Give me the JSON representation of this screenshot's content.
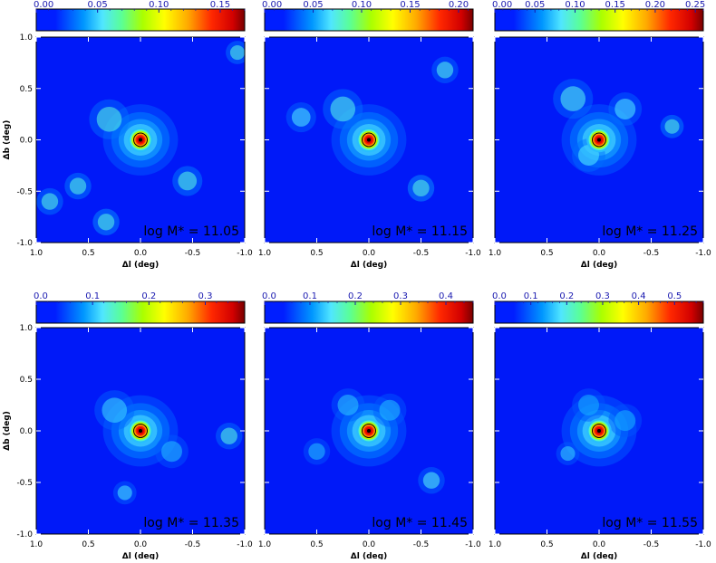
{
  "chart_data": [
    {
      "type": "heatmap",
      "colorbar": {
        "range": [
          0,
          0.17
        ],
        "ticks": [
          "0.00",
          "0.05",
          "0.10",
          "0.15"
        ],
        "values": [
          0,
          0.05,
          0.1,
          0.15
        ]
      },
      "xlabel": "Δl (deg)",
      "ylabel": "Δb (deg)",
      "xlim": [
        1.0,
        -1.0
      ],
      "ylim": [
        -1.0,
        1.0
      ],
      "xticks": [
        "1.0",
        "0.5",
        "0.0",
        "-0.5",
        "-1.0"
      ],
      "yticks": [
        "-1.0",
        "-0.5",
        "0.0",
        "0.5",
        "1.0"
      ],
      "annotation": "log M* = 11.05",
      "peak": {
        "l": 0.0,
        "b": 0.0,
        "value": 0.17
      },
      "blobs": [
        {
          "l": 0.33,
          "b": -0.8,
          "amp": 0.045,
          "sigma": 0.08
        },
        {
          "l": 0.6,
          "b": -0.45,
          "amp": 0.035,
          "sigma": 0.08
        },
        {
          "l": 0.87,
          "b": -0.6,
          "amp": 0.03,
          "sigma": 0.08
        },
        {
          "l": -0.45,
          "b": -0.4,
          "amp": 0.035,
          "sigma": 0.09
        },
        {
          "l": -0.93,
          "b": 0.85,
          "amp": 0.03,
          "sigma": 0.07
        },
        {
          "l": 0.3,
          "b": 0.2,
          "amp": 0.025,
          "sigma": 0.12
        }
      ]
    },
    {
      "type": "heatmap",
      "colorbar": {
        "range": [
          0,
          0.215
        ],
        "ticks": [
          "0.00",
          "0.05",
          "0.10",
          "0.15",
          "0.20"
        ],
        "values": [
          0,
          0.05,
          0.1,
          0.15,
          0.2
        ]
      },
      "xlabel": "Δl (deg)",
      "ylabel": "",
      "xlim": [
        1.0,
        -1.0
      ],
      "ylim": [
        -1.0,
        1.0
      ],
      "xticks": [
        "1.0",
        "0.5",
        "0.0",
        "-0.5",
        "-1.0"
      ],
      "yticks": [],
      "annotation": "log M* = 11.15",
      "peak": {
        "l": 0.0,
        "b": 0.0,
        "value": 0.215
      },
      "blobs": [
        {
          "l": -0.5,
          "b": -0.47,
          "amp": 0.06,
          "sigma": 0.08
        },
        {
          "l": -0.73,
          "b": 0.68,
          "amp": 0.03,
          "sigma": 0.08
        },
        {
          "l": 0.65,
          "b": 0.22,
          "amp": 0.025,
          "sigma": 0.09
        },
        {
          "l": 0.25,
          "b": 0.3,
          "amp": 0.03,
          "sigma": 0.12
        }
      ]
    },
    {
      "type": "heatmap",
      "colorbar": {
        "range": [
          0,
          0.26
        ],
        "ticks": [
          "0.00",
          "0.05",
          "0.10",
          "0.15",
          "0.20",
          "0.25"
        ],
        "values": [
          0,
          0.05,
          0.1,
          0.15,
          0.2,
          0.25
        ]
      },
      "xlabel": "Δl (deg)",
      "ylabel": "",
      "xlim": [
        1.0,
        -1.0
      ],
      "ylim": [
        -1.0,
        1.0
      ],
      "xticks": [
        "1.0",
        "0.5",
        "0.0",
        "-0.5",
        "-1.0"
      ],
      "yticks": [],
      "annotation": "log M* = 11.25",
      "peak": {
        "l": 0.0,
        "b": 0.0,
        "value": 0.26
      },
      "blobs": [
        {
          "l": -0.7,
          "b": 0.13,
          "amp": 0.06,
          "sigma": 0.07
        },
        {
          "l": 0.25,
          "b": 0.4,
          "amp": 0.035,
          "sigma": 0.12
        },
        {
          "l": -0.25,
          "b": 0.3,
          "amp": 0.03,
          "sigma": 0.1
        },
        {
          "l": 0.1,
          "b": -0.15,
          "amp": 0.03,
          "sigma": 0.1
        }
      ]
    },
    {
      "type": "heatmap",
      "colorbar": {
        "range": [
          0,
          0.37
        ],
        "ticks": [
          "0.0",
          "0.1",
          "0.2",
          "0.3"
        ],
        "values": [
          0,
          0.1,
          0.2,
          0.3
        ]
      },
      "xlabel": "Δl (deg)",
      "ylabel": "Δb (deg)",
      "xlim": [
        1.0,
        -1.0
      ],
      "ylim": [
        -1.0,
        1.0
      ],
      "xticks": [
        "1.0",
        "0.5",
        "0.0",
        "-0.5",
        "-1.0"
      ],
      "yticks": [
        "-1.0",
        "-0.5",
        "0.0",
        "0.5",
        "1.0"
      ],
      "annotation": "log M* = 11.35",
      "peak": {
        "l": 0.0,
        "b": 0.0,
        "value": 0.37
      },
      "blobs": [
        {
          "l": -0.85,
          "b": -0.05,
          "amp": 0.06,
          "sigma": 0.08
        },
        {
          "l": 0.15,
          "b": -0.6,
          "amp": 0.04,
          "sigma": 0.07
        },
        {
          "l": 0.25,
          "b": 0.2,
          "amp": 0.035,
          "sigma": 0.12
        },
        {
          "l": -0.3,
          "b": -0.2,
          "amp": 0.025,
          "sigma": 0.1
        }
      ]
    },
    {
      "type": "heatmap",
      "colorbar": {
        "range": [
          0,
          0.46
        ],
        "ticks": [
          "0.0",
          "0.1",
          "0.2",
          "0.3",
          "0.4"
        ],
        "values": [
          0,
          0.1,
          0.2,
          0.3,
          0.4
        ]
      },
      "xlabel": "Δl (deg)",
      "ylabel": "",
      "xlim": [
        1.0,
        -1.0
      ],
      "ylim": [
        -1.0,
        1.0
      ],
      "xticks": [
        "1.0",
        "0.5",
        "0.0",
        "-0.5",
        "-1.0"
      ],
      "yticks": [],
      "annotation": "log M* = 11.45",
      "peak": {
        "l": 0.0,
        "b": 0.0,
        "value": 0.46
      },
      "blobs": [
        {
          "l": -0.6,
          "b": -0.48,
          "amp": 0.06,
          "sigma": 0.08
        },
        {
          "l": 0.5,
          "b": -0.2,
          "amp": 0.03,
          "sigma": 0.08
        },
        {
          "l": 0.2,
          "b": 0.25,
          "amp": 0.035,
          "sigma": 0.1
        },
        {
          "l": -0.2,
          "b": 0.2,
          "amp": 0.03,
          "sigma": 0.1
        }
      ]
    },
    {
      "type": "heatmap",
      "colorbar": {
        "range": [
          0,
          0.58
        ],
        "ticks": [
          "0.0",
          "0.1",
          "0.2",
          "0.3",
          "0.4",
          "0.5"
        ],
        "values": [
          0,
          0.1,
          0.2,
          0.3,
          0.4,
          0.5
        ]
      },
      "xlabel": "Δl (deg)",
      "ylabel": "",
      "xlim": [
        1.0,
        -1.0
      ],
      "ylim": [
        -1.0,
        1.0
      ],
      "xticks": [
        "1.0",
        "0.5",
        "0.0",
        "-0.5",
        "-1.0"
      ],
      "yticks": [],
      "annotation": "log M* = 11.55",
      "peak": {
        "l": 0.0,
        "b": 0.0,
        "value": 0.58
      },
      "blobs": [
        {
          "l": 0.3,
          "b": -0.22,
          "amp": 0.05,
          "sigma": 0.07
        },
        {
          "l": -0.25,
          "b": 0.1,
          "amp": 0.03,
          "sigma": 0.1
        },
        {
          "l": 0.1,
          "b": 0.25,
          "amp": 0.03,
          "sigma": 0.1
        }
      ]
    }
  ]
}
